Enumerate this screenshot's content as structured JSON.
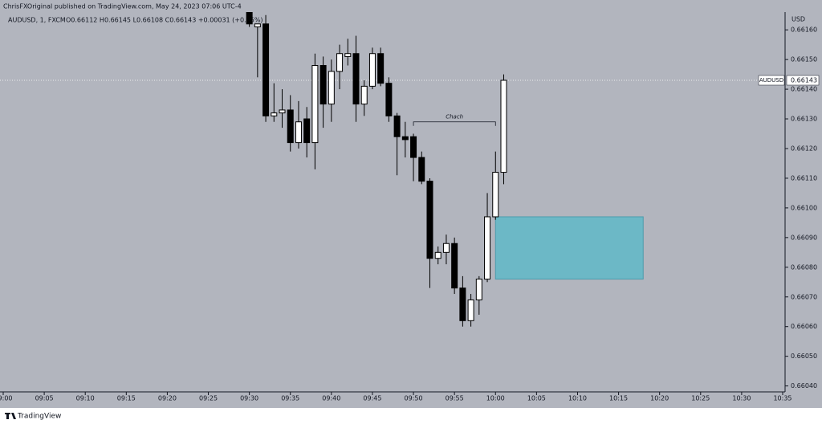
{
  "chart_data": {
    "type": "candlestick",
    "title": "ChrisFXOriginal published on TradingView.com, May 24, 2023 07:06 UTC-4",
    "symbol": "AUDUSD, 1, FXCM",
    "ohlc_text": "O0.66112 H0.66145 L0.66108 C0.66143 +0.00031 (+0.05%)",
    "currency": "USD",
    "logo": "TradingView",
    "up_color": "#ffffff",
    "down_color": "#000000",
    "x": [
      "09:30",
      "09:31",
      "09:32",
      "09:33",
      "09:34",
      "09:35",
      "09:36",
      "09:37",
      "09:38",
      "09:39",
      "09:40",
      "09:41",
      "09:42",
      "09:43",
      "09:44",
      "09:45",
      "09:46",
      "09:47",
      "09:48",
      "09:49",
      "09:50",
      "09:51",
      "09:52",
      "09:53",
      "09:54",
      "09:55",
      "09:56",
      "09:57",
      "09:58",
      "09:59",
      "10:00",
      "10:01"
    ],
    "open": [
      0.66166,
      0.66161,
      0.66162,
      0.66131,
      0.66132,
      0.66133,
      0.66122,
      0.6613,
      0.66122,
      0.66148,
      0.66135,
      0.66146,
      0.66151,
      0.66152,
      0.66135,
      0.66141,
      0.66152,
      0.66142,
      0.66131,
      0.66124,
      0.66124,
      0.66117,
      0.66109,
      0.66083,
      0.66085,
      0.66088,
      0.66073,
      0.66062,
      0.66069,
      0.66076,
      0.66097,
      0.66112
    ],
    "high": [
      0.66166,
      0.66162,
      0.66165,
      0.66142,
      0.6614,
      0.66138,
      0.66136,
      0.66134,
      0.66152,
      0.66151,
      0.6615,
      0.66155,
      0.66157,
      0.66158,
      0.66143,
      0.66154,
      0.66154,
      0.66144,
      0.66132,
      0.66129,
      0.66125,
      0.66119,
      0.6611,
      0.66087,
      0.66091,
      0.6609,
      0.66077,
      0.66071,
      0.66077,
      0.66105,
      0.66119,
      0.66145
    ],
    "low": [
      0.66161,
      0.66144,
      0.66129,
      0.66129,
      0.66127,
      0.66119,
      0.6612,
      0.66117,
      0.66113,
      0.66127,
      0.66129,
      0.6614,
      0.66148,
      0.66129,
      0.66131,
      0.6614,
      0.66141,
      0.66129,
      0.66111,
      0.66117,
      0.66109,
      0.66108,
      0.66073,
      0.66081,
      0.66081,
      0.66071,
      0.6606,
      0.6606,
      0.66064,
      0.66075,
      0.66096,
      0.66108
    ],
    "close": [
      0.66162,
      0.66162,
      0.66131,
      0.66132,
      0.66133,
      0.66122,
      0.66129,
      0.66122,
      0.66148,
      0.66135,
      0.66146,
      0.66152,
      0.66152,
      0.66135,
      0.66141,
      0.66152,
      0.66142,
      0.66131,
      0.66124,
      0.66123,
      0.66117,
      0.66109,
      0.66083,
      0.66085,
      0.66088,
      0.66073,
      0.66062,
      0.66069,
      0.66076,
      0.66097,
      0.66112,
      0.66143
    ],
    "xlim": [
      "09:00",
      "10:35"
    ],
    "xticks": [
      "09:00",
      "09:05",
      "09:10",
      "09:15",
      "09:20",
      "09:25",
      "09:30",
      "09:35",
      "09:40",
      "09:45",
      "09:50",
      "09:55",
      "10:00",
      "10:05",
      "10:10",
      "10:15",
      "10:20",
      "10:25",
      "10:30",
      "10:35"
    ],
    "ylim": [
      0.66038,
      0.66166
    ],
    "yticks": [
      {
        "value": 0.6604,
        "label": "0.66040"
      },
      {
        "value": 0.6605,
        "label": "0.66050"
      },
      {
        "value": 0.6606,
        "label": "0.66060"
      },
      {
        "value": 0.6607,
        "label": "0.66070"
      },
      {
        "value": 0.6608,
        "label": "0.66080"
      },
      {
        "value": 0.6609,
        "label": "0.66090"
      },
      {
        "value": 0.661,
        "label": "0.66100"
      },
      {
        "value": 0.6611,
        "label": "0.66110"
      },
      {
        "value": 0.6612,
        "label": "0.66120"
      },
      {
        "value": 0.6613,
        "label": "0.66130"
      },
      {
        "value": 0.6614,
        "label": "0.66140"
      },
      {
        "value": 0.6615,
        "label": "0.66150"
      },
      {
        "value": 0.6616,
        "label": "0.66160"
      }
    ],
    "last_price": {
      "name": "AUDUSD",
      "value": 0.66143,
      "label": "0.66143"
    },
    "zone": {
      "x": [
        "10:00",
        "10:18"
      ],
      "y": [
        0.66097,
        0.66076
      ],
      "color": "#6cb8c6"
    },
    "annotation": {
      "text": "Chach",
      "x": [
        "09:50",
        "10:00"
      ],
      "y": 0.66129
    }
  }
}
